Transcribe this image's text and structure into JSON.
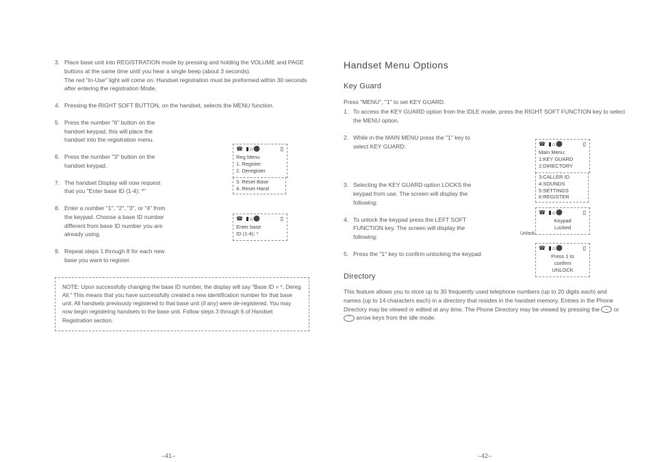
{
  "left": {
    "steps": [
      {
        "num": "3",
        "text": "Place base unit into REGISTRATION mode by pressing and holding the VOLUME and PAGE buttons at the same time until you hear a single beep (about 3 seconds).\nThe red \"In-Use\" light will come on. Handset registration must be preformed within 30 seconds after entering the registration Mode.",
        "narrow": false
      },
      {
        "num": "4",
        "text": "Pressing the RIGHT SOFT BUTTON, on the handset, selects the MENU function.",
        "narrow": false
      },
      {
        "num": "5",
        "text": "Press the number \"6\" button on the handset keypad, this will place the handset into the registration menu.",
        "narrow": true
      },
      {
        "num": "6",
        "text": "Press the number \"3\" button on the handset keypad.",
        "narrow": true
      },
      {
        "num": "7",
        "text": "The handset Display will now request that you \"Enter base ID (1-4): *\"",
        "narrow": true
      },
      {
        "num": "8",
        "text": "Enter a number \"1\", \"2\", \"3\", or \"4\" from the keypad. Choose a base ID number different from base ID number you are already using.",
        "narrow": true
      },
      {
        "num": "9",
        "text": "Repeat steps 1 through 8 for each new base you want to register.",
        "narrow": true
      }
    ],
    "note": "NOTE: Upon successfully changing the base ID number, the display will say \"Base ID = *, Dereg All.\" This means that you have successfully created a new identification number for that base unit. All handsets previously registered to that base unit (if any) were de-registered. You may now begin registering handsets to the base unit. Follow steps 3 through 6 of Handset Registration section.",
    "regmenu_main": "Reg Menu\n1. Register\n2. Deregister",
    "regmenu_sub": "3. Reset Base\n4. Reset Hand",
    "enterbase": "Enter base\nID (1-4): *",
    "pagenum": "–41–"
  },
  "right": {
    "h2": "Handset Menu Options",
    "h3a": "Key Guard",
    "intro": "Press \"MENU\", \"1\" to set KEY GUARD.",
    "s1": {
      "num": "1",
      "text": "To access the KEY GUARD option from the IDLE mode, press the RIGHT SOFT FUNCTION key to select the MENU option."
    },
    "s2": {
      "num": "2",
      "text": "While in the MAIN MENU press the \"1\" key to select KEY GUARD:"
    },
    "s3": {
      "num": "3",
      "text": "Selecting the KEY GUARD option LOCKS the keypad from use. The screen will display the following:"
    },
    "s4": {
      "num": "4",
      "text": "To unlock the keypad press the LEFT SOFT FUNCTION key. The screen will display the following:"
    },
    "s5": {
      "num": "5",
      "text": "Press the \"1\" key to confirm unlocking the keypad."
    },
    "mainmenu_main": "Main Menu:\n1:KEY GUARD\n2:DIRECTORY",
    "mainmenu_sub": "3:CALLER ID\n4:SOUNDS\n5:SETTINGS\n6:REGISTER",
    "locked": "Keypad\nLocked",
    "unlock_label": "Unlock",
    "press1": "Press 1 to\nconfirm\nUNLOCK",
    "h3b": "Directory",
    "dir_text": "This feature allows you to store up to 30 frequently used telephone numbers (up to 20 digits each) and names (up to 14 characters each) in a directory that resides in the handset memory. Entries in the Phone Directory may be viewed or edited at any time. The Phone Directory may be viewed by pressing the",
    "dir_text2": "arrow keys from the idle mode.",
    "pagenum": "–42–"
  },
  "icons": "☎ ▮ ⌂ ⚫         ▯"
}
